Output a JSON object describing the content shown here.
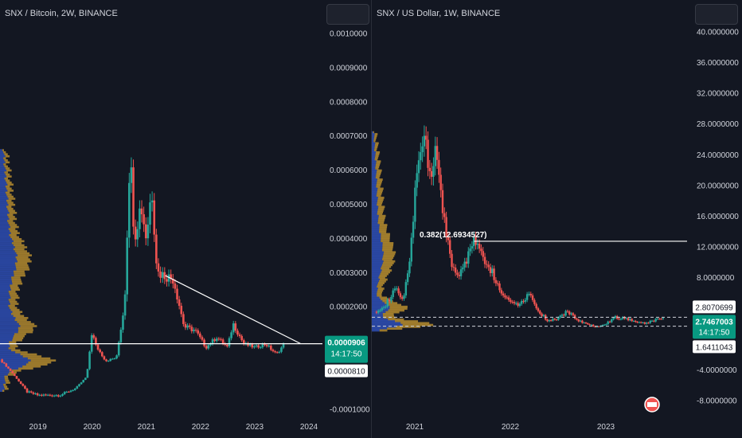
{
  "colors": {
    "background": "#131722",
    "up_candle": "#26a69a",
    "down_candle": "#ef5350",
    "volume_profile_up": "#2e4db3",
    "volume_profile_down": "#b38a2e",
    "price_tag": "#089981",
    "line": "#ffffff"
  },
  "chart_data": [
    {
      "type": "candlestick",
      "title": "SNX / Bitcoin, 2W, BINANCE",
      "y_ticks": [
        "0.0010000",
        "0.0009000",
        "0.0008000",
        "0.0007000",
        "0.0006000",
        "0.0005000",
        "0.0004000",
        "0.0003000",
        "0.0002000",
        "0.0001000",
        "-0.0001000"
      ],
      "x_ticks": [
        "2019",
        "2020",
        "2021",
        "2022",
        "2023",
        "2024"
      ],
      "ylim": [
        -0.00012,
        0.00105
      ],
      "xlim": [
        2018.3,
        2024.25
      ],
      "price_tags": [
        {
          "value": "0.0000906",
          "countdown": "14:17:50"
        },
        {
          "value": "0.0000810"
        }
      ],
      "trendline": {
        "from": [
          2021.35,
          0.00029
        ],
        "to": [
          2023.85,
          9.06e-05
        ]
      },
      "horizontal_line": 9.06e-05,
      "series_outline": [
        [
          2018.3,
          4.5e-05
        ],
        [
          2018.5,
          1e-05
        ],
        [
          2018.8,
          -5e-05
        ],
        [
          2019.0,
          -6e-05
        ],
        [
          2019.4,
          -6e-05
        ],
        [
          2019.7,
          -4e-05
        ],
        [
          2019.9,
          -5e-06
        ],
        [
          2020.0,
          0.00013
        ],
        [
          2020.05,
          9e-05
        ],
        [
          2020.25,
          4e-05
        ],
        [
          2020.45,
          5e-05
        ],
        [
          2020.6,
          0.00021
        ],
        [
          2020.7,
          0.00066
        ],
        [
          2020.78,
          0.0004
        ],
        [
          2020.9,
          0.0005
        ],
        [
          2021.0,
          0.0004
        ],
        [
          2021.1,
          0.00055
        ],
        [
          2021.2,
          0.0003
        ],
        [
          2021.35,
          0.00029
        ],
        [
          2021.5,
          0.00028
        ],
        [
          2021.7,
          0.00014
        ],
        [
          2021.9,
          0.00013
        ],
        [
          2022.1,
          8e-05
        ],
        [
          2022.3,
          0.00011
        ],
        [
          2022.5,
          8e-05
        ],
        [
          2022.6,
          0.00015
        ],
        [
          2022.8,
          9e-05
        ],
        [
          2023.0,
          8e-05
        ],
        [
          2023.2,
          9e-05
        ],
        [
          2023.4,
          6e-05
        ],
        [
          2023.55,
          9.06e-05
        ]
      ]
    },
    {
      "type": "candlestick",
      "title": "SNX / US Dollar, 1W, BINANCE",
      "y_ticks": [
        "40.0000000",
        "36.0000000",
        "32.0000000",
        "28.0000000",
        "24.0000000",
        "20.0000000",
        "16.0000000",
        "12.0000000",
        "8.0000000",
        "-4.0000000",
        "-8.0000000"
      ],
      "x_ticks": [
        "2021",
        "2022",
        "2023"
      ],
      "ylim": [
        -10.0,
        42.0
      ],
      "xlim": [
        2020.55,
        2023.85
      ],
      "price_tags": [
        {
          "value": "2.8070699"
        },
        {
          "value": "2.7467003",
          "countdown": "14:17:50"
        },
        {
          "value": "1.6411043"
        }
      ],
      "fib_label": "0.382(12.6934527)",
      "fib_level": 12.69,
      "dashed_lines": [
        2.8070699,
        1.6411043
      ],
      "series_outline": [
        [
          2020.58,
          3.5
        ],
        [
          2020.7,
          4.5
        ],
        [
          2020.8,
          6.5
        ],
        [
          2020.88,
          5.0
        ],
        [
          2020.95,
          10.0
        ],
        [
          2021.02,
          22.0
        ],
        [
          2021.1,
          27.0
        ],
        [
          2021.15,
          20.0
        ],
        [
          2021.22,
          24.5
        ],
        [
          2021.3,
          16.0
        ],
        [
          2021.38,
          10.0
        ],
        [
          2021.45,
          8.0
        ],
        [
          2021.55,
          10.5
        ],
        [
          2021.6,
          13.0
        ],
        [
          2021.7,
          11.0
        ],
        [
          2021.8,
          9.0
        ],
        [
          2021.9,
          6.0
        ],
        [
          2022.0,
          5.0
        ],
        [
          2022.1,
          4.5
        ],
        [
          2022.2,
          6.0
        ],
        [
          2022.3,
          3.5
        ],
        [
          2022.4,
          2.3
        ],
        [
          2022.5,
          2.6
        ],
        [
          2022.6,
          3.6
        ],
        [
          2022.7,
          2.5
        ],
        [
          2022.8,
          1.9
        ],
        [
          2022.9,
          1.6
        ],
        [
          2023.0,
          2.0
        ],
        [
          2023.1,
          2.8
        ],
        [
          2023.2,
          2.6
        ],
        [
          2023.3,
          2.4
        ],
        [
          2023.4,
          2.0
        ],
        [
          2023.5,
          2.4
        ],
        [
          2023.6,
          2.7467003
        ]
      ]
    }
  ]
}
